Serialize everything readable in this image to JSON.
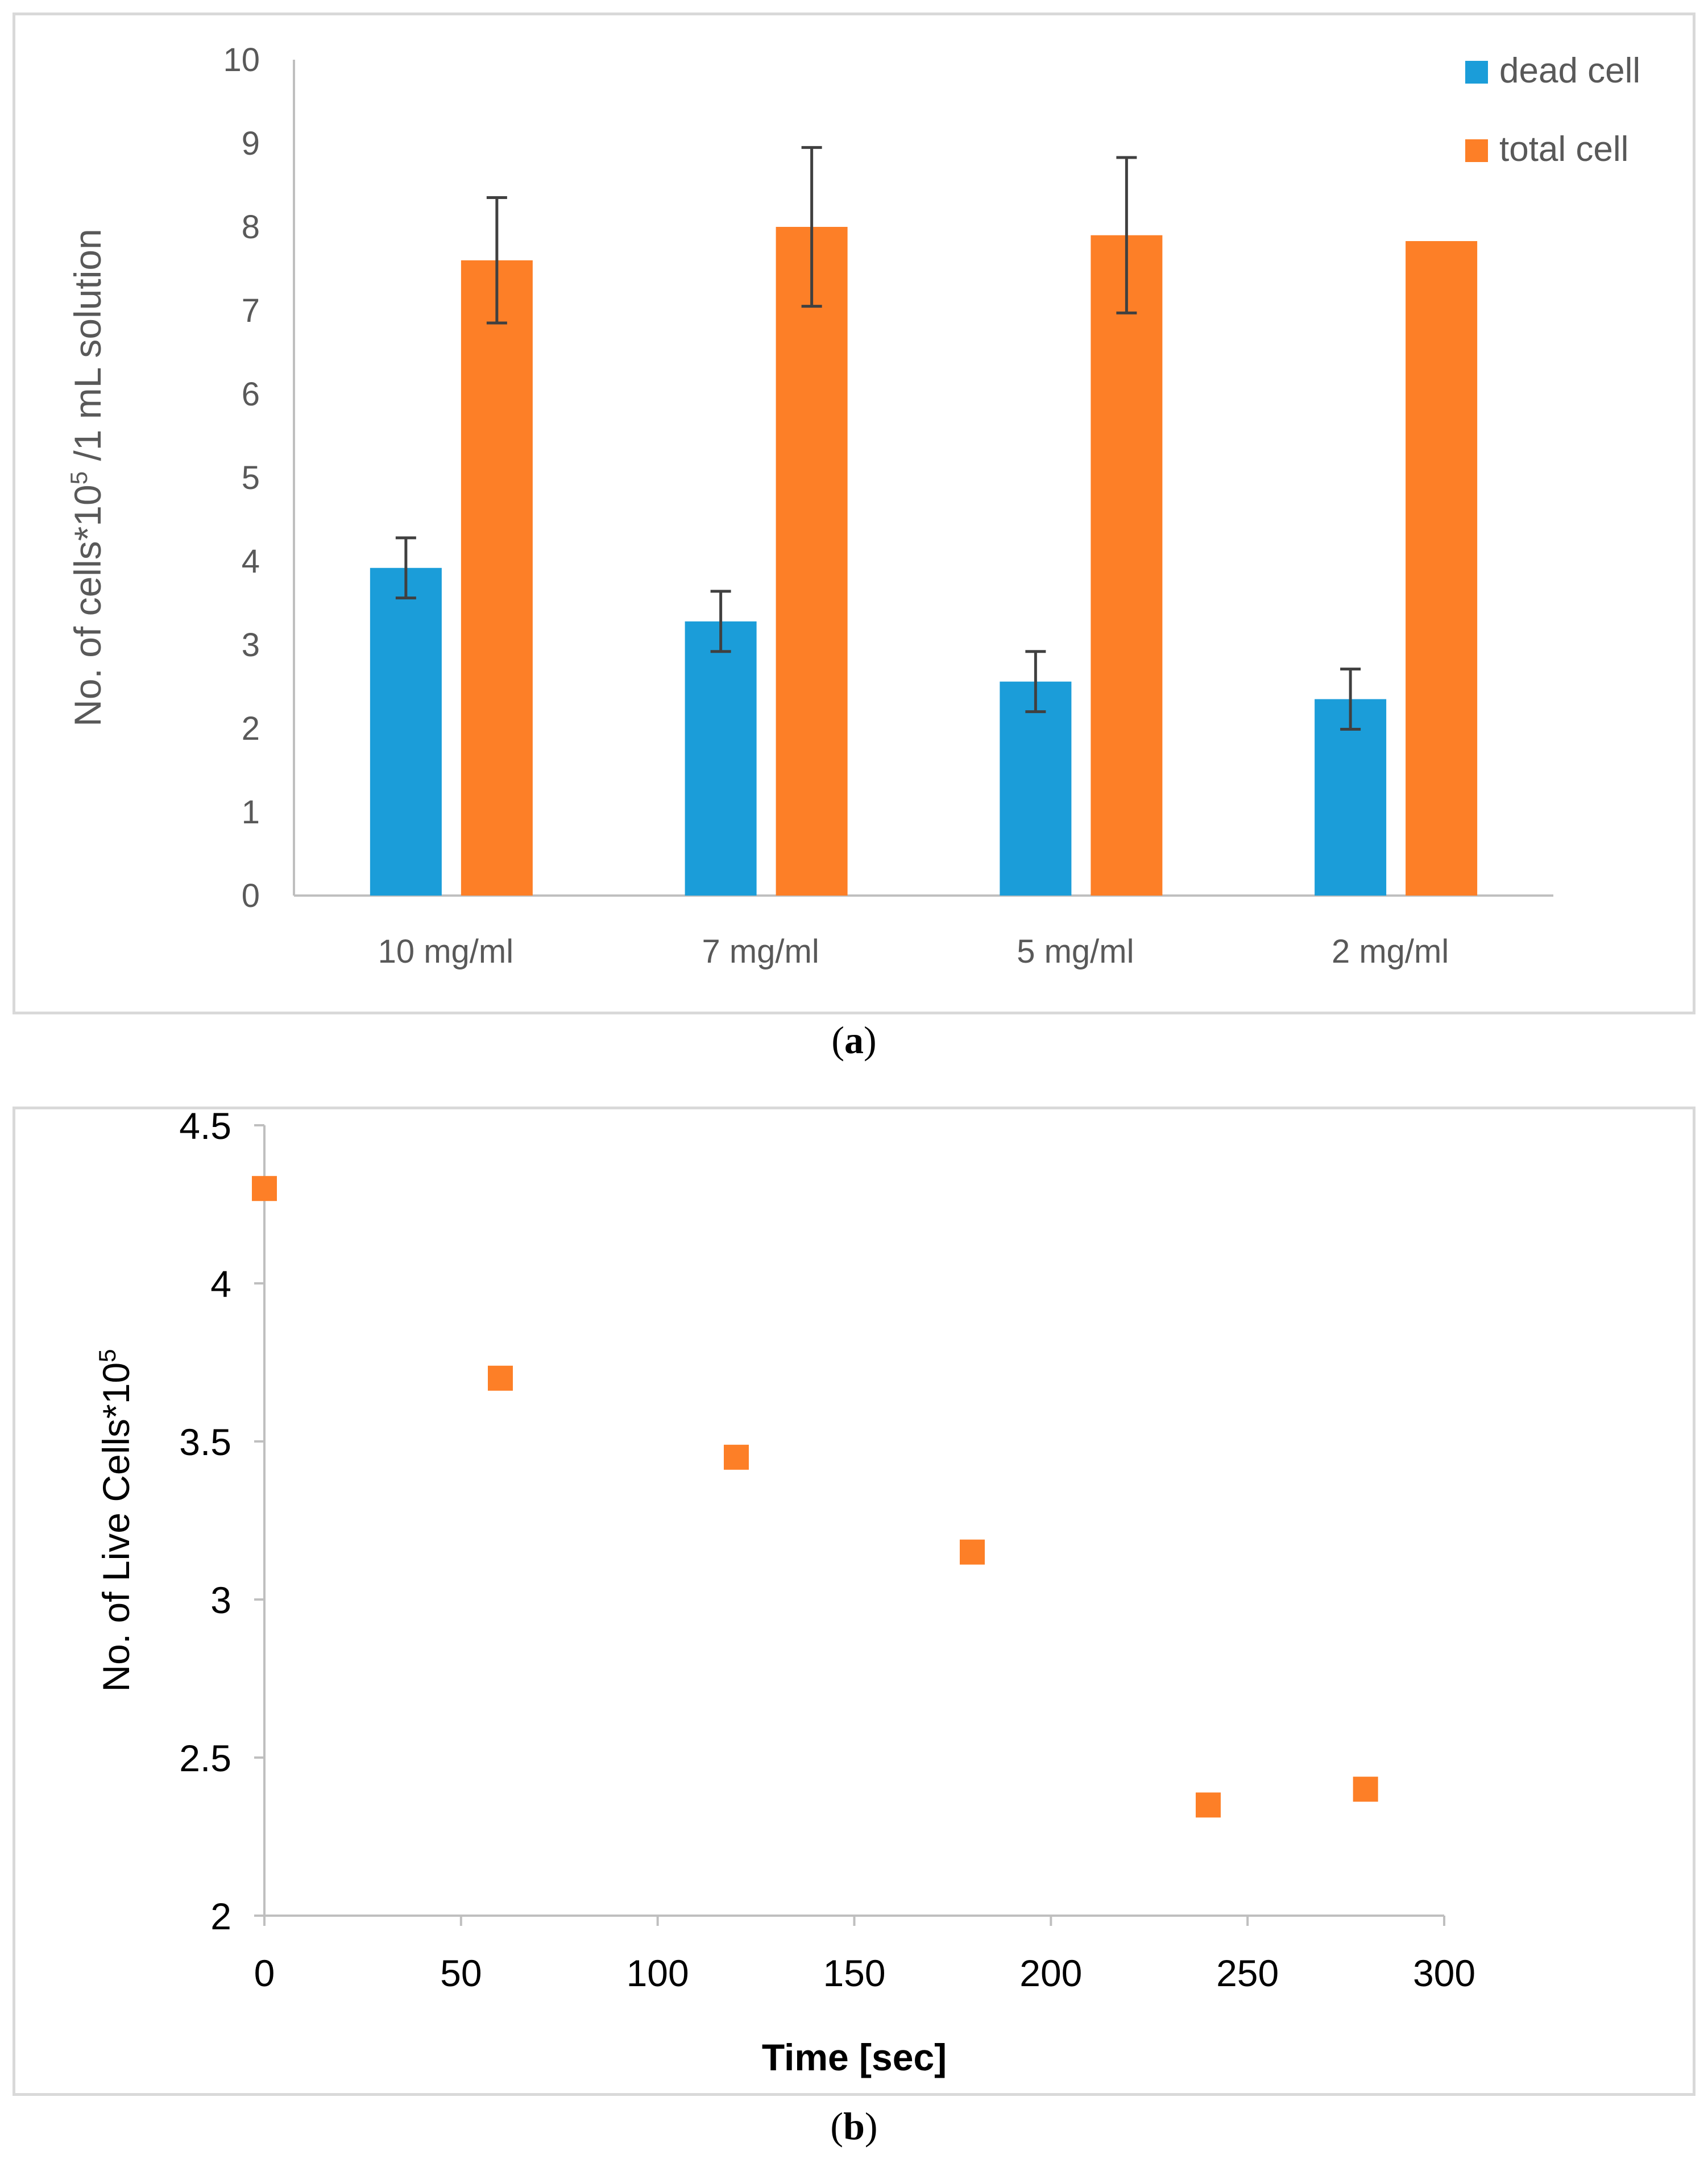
{
  "chart_data": [
    {
      "type": "bar",
      "panel": "a",
      "caption_letter": "a",
      "categories": [
        "10 mg/ml",
        "7 mg/ml",
        "5 mg/ml",
        "2 mg/ml"
      ],
      "series": [
        {
          "name": "dead cell",
          "color": "#1b9dd9",
          "values": [
            3.92,
            3.28,
            2.56,
            2.35
          ],
          "errors": [
            0.36,
            0.36,
            0.36,
            0.36
          ]
        },
        {
          "name": "total cell",
          "color": "#fd7f27",
          "values": [
            7.6,
            8.0,
            7.9,
            7.83
          ],
          "errors": [
            0.75,
            0.95,
            0.93,
            null
          ]
        }
      ],
      "ylabel": "No. of cells*10",
      "ylabel_sup": "5",
      "ylabel_suffix": " /1 mL solution",
      "xlabel": "",
      "ylim": [
        0,
        10
      ],
      "yticks": [
        "0",
        "1",
        "2",
        "3",
        "4",
        "5",
        "6",
        "7",
        "8",
        "9",
        "10"
      ],
      "legend_position": "top-right"
    },
    {
      "type": "scatter",
      "panel": "b",
      "caption_letter": "b",
      "series": [
        {
          "name": "live cells",
          "color": "#fd7f27",
          "x": [
            0,
            60,
            120,
            180,
            240,
            280
          ],
          "y": [
            4.3,
            3.7,
            3.45,
            3.15,
            2.35,
            2.4
          ]
        }
      ],
      "xlabel": "Time [sec]",
      "ylabel": "No. of Live Cells*10",
      "ylabel_sup": "5",
      "xlim": [
        0,
        300
      ],
      "ylim": [
        2,
        4.5
      ],
      "xticks": [
        "0",
        "50",
        "100",
        "150",
        "200",
        "250",
        "300"
      ],
      "yticks": [
        "2",
        "2.5",
        "3",
        "3.5",
        "4",
        "4.5"
      ]
    }
  ]
}
